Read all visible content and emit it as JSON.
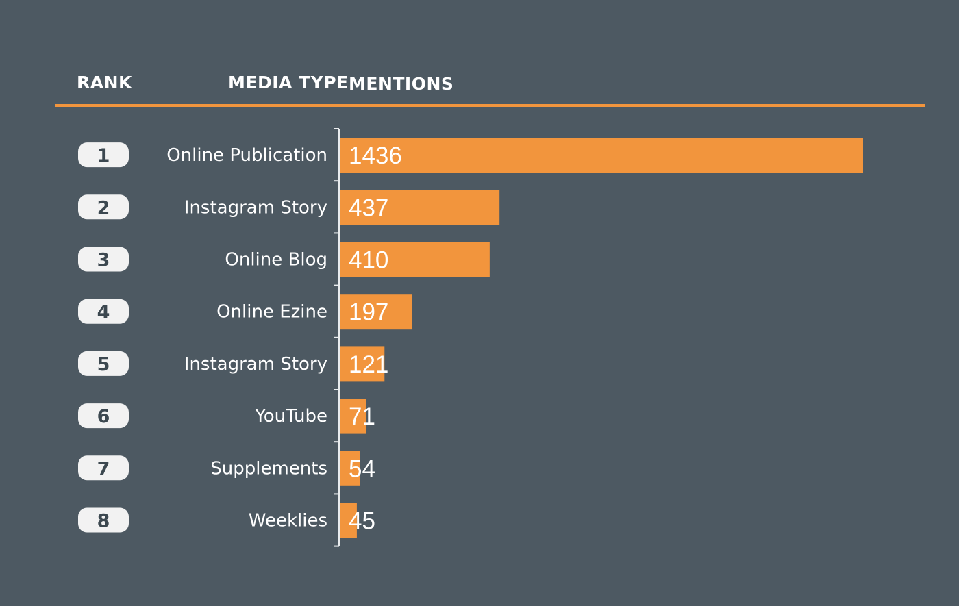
{
  "header": {
    "rank_label": "RANK",
    "media_type_label": "MEDIA TYPE",
    "mentions_label": "MENTIONS"
  },
  "colors": {
    "background": "#4d5962",
    "accent": "#f2953d",
    "text": "#ffffff",
    "rank_pill": "#f2f2f2",
    "rank_text": "#3c4850",
    "axis": "#e9ecee"
  },
  "chart_data": {
    "type": "bar",
    "orientation": "horizontal",
    "ranks": [
      "1",
      "2",
      "3",
      "4",
      "5",
      "6",
      "7",
      "8"
    ],
    "categories": [
      "Online Publication",
      "Instagram Story",
      "Online Blog",
      "Online Ezine",
      "Instagram Story",
      "YouTube",
      "Supplements",
      "Weeklies"
    ],
    "values": [
      1436,
      437,
      410,
      197,
      121,
      71,
      54,
      45
    ],
    "value_labels": [
      "1436",
      "437",
      "410",
      "197",
      "121",
      "71",
      "54",
      "45"
    ],
    "xlim": [
      0,
      1436
    ],
    "grid": false,
    "legend": "none"
  }
}
